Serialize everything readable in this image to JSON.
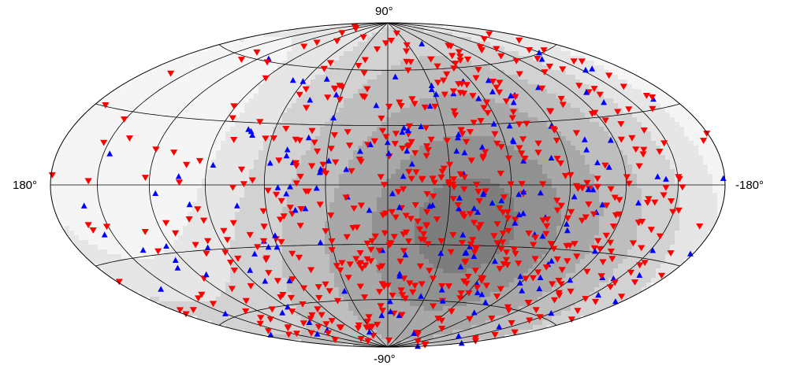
{
  "map": {
    "projection": "hammer-aitoff",
    "labels": {
      "top": "90°",
      "bottom": "-90°",
      "left": "180°",
      "right": "-180°"
    },
    "colors": {
      "background": "#ffffff",
      "exposure_shades": [
        "#f5f5f5",
        "#e6e6e6",
        "#d2d2d2",
        "#bebebe",
        "#a8a8a8",
        "#919191",
        "#7d7d7d"
      ],
      "grid": "#000000",
      "series_down": "#ff0000",
      "series_up": "#0000ff"
    },
    "markers": {
      "series_down": "red-down-triangle",
      "series_up": "blue-up-triangle"
    },
    "grid": {
      "meridians_deg": [
        -150,
        -120,
        -90,
        -60,
        -30,
        0,
        30,
        60,
        90,
        120,
        150
      ],
      "parallels_deg": [
        -60,
        -30,
        0,
        30,
        60
      ]
    },
    "exposure_peak": {
      "lon": -40,
      "lat": -20
    },
    "point_counts": {
      "series_down": 620,
      "series_up": 190
    }
  }
}
